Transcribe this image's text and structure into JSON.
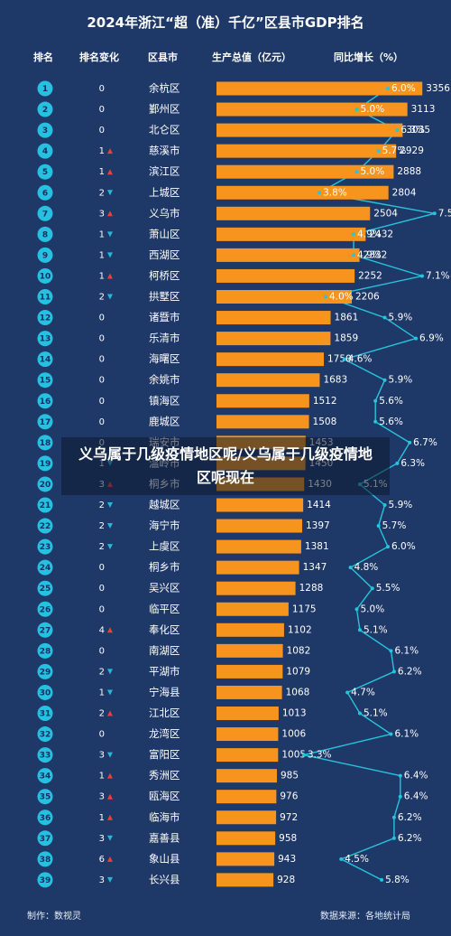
{
  "title": "2024年浙江“超（准）千亿”区县市GDP排名",
  "headers": {
    "rank": "排名",
    "change": "排名变化",
    "district": "区县市",
    "gdp": "生产总值（亿元）",
    "growth": "同比增长（%）"
  },
  "overlay": {
    "text": "义乌属于几级疫情地区呢/义乌属于几级疫情地区呢现在"
  },
  "footer": {
    "maker": "制作：数视灵",
    "source": "数据来源：各地统计局"
  },
  "colors": {
    "background": "#1e3868",
    "bar": "#f7941d",
    "rank_circle": "#26c0e0",
    "line": "#27c4dc",
    "up": "#e8413c",
    "down": "#29b6d8"
  },
  "chart_data": {
    "type": "table",
    "title": "2024年浙江“超（准）千亿”区县市GDP排名",
    "columns": [
      "排名",
      "排名变化",
      "区县市",
      "生产总值（亿元）",
      "同比增长（%）"
    ],
    "rows": [
      {
        "rank": 1,
        "change": 0,
        "direction": "",
        "name": "余杭区",
        "gdp": 3356,
        "growth": "6.0%"
      },
      {
        "rank": 2,
        "change": 0,
        "direction": "",
        "name": "鄞州区",
        "gdp": 3113,
        "growth": "5.0%"
      },
      {
        "rank": 3,
        "change": 0,
        "direction": "",
        "name": "北仑区",
        "gdp": 3035,
        "growth": "6.3%"
      },
      {
        "rank": 4,
        "change": 1,
        "direction": "up",
        "name": "慈溪市",
        "gdp": 2929,
        "growth": "5.7%"
      },
      {
        "rank": 5,
        "change": 1,
        "direction": "up",
        "name": "滨江区",
        "gdp": 2888,
        "growth": "5.0%"
      },
      {
        "rank": 6,
        "change": 2,
        "direction": "down",
        "name": "上城区",
        "gdp": 2804,
        "growth": "3.8%"
      },
      {
        "rank": 7,
        "change": 3,
        "direction": "up",
        "name": "义乌市",
        "gdp": 2504,
        "growth": "7.5%"
      },
      {
        "rank": 8,
        "change": 1,
        "direction": "down",
        "name": "萧山区",
        "gdp": 2432,
        "growth": "4.9%"
      },
      {
        "rank": 9,
        "change": 1,
        "direction": "down",
        "name": "西湖区",
        "gdp": 2332,
        "growth": "4.9%"
      },
      {
        "rank": 10,
        "change": 1,
        "direction": "up",
        "name": "柯桥区",
        "gdp": 2252,
        "growth": "7.1%"
      },
      {
        "rank": 11,
        "change": 2,
        "direction": "down",
        "name": "拱墅区",
        "gdp": 2206,
        "growth": "4.0%"
      },
      {
        "rank": 12,
        "change": 0,
        "direction": "",
        "name": "诸暨市",
        "gdp": 1861,
        "growth": "5.9%"
      },
      {
        "rank": 13,
        "change": 0,
        "direction": "",
        "name": "乐清市",
        "gdp": 1859,
        "growth": "6.9%"
      },
      {
        "rank": 14,
        "change": 0,
        "direction": "",
        "name": "海曙区",
        "gdp": 1750,
        "growth": "4.6%"
      },
      {
        "rank": 15,
        "change": 0,
        "direction": "",
        "name": "余姚市",
        "gdp": 1683,
        "growth": "5.9%"
      },
      {
        "rank": 16,
        "change": 0,
        "direction": "",
        "name": "镇海区",
        "gdp": 1512,
        "growth": "5.6%"
      },
      {
        "rank": 17,
        "change": 0,
        "direction": "",
        "name": "鹿城区",
        "gdp": 1508,
        "growth": "5.6%"
      },
      {
        "rank": 18,
        "change": 0,
        "direction": "",
        "name": "瑞安市",
        "gdp": 1453,
        "growth": "6.7%"
      },
      {
        "rank": 19,
        "change": 1,
        "direction": "down",
        "name": "温岭市",
        "gdp": 1450,
        "growth": "6.3%"
      },
      {
        "rank": 20,
        "change": 3,
        "direction": "up",
        "name": "桐乡市",
        "gdp": 1430,
        "growth": "5.1%"
      },
      {
        "rank": 21,
        "change": 2,
        "direction": "down",
        "name": "越城区",
        "gdp": 1414,
        "growth": "5.9%"
      },
      {
        "rank": 22,
        "change": 2,
        "direction": "down",
        "name": "海宁市",
        "gdp": 1397,
        "growth": "5.7%"
      },
      {
        "rank": 23,
        "change": 2,
        "direction": "down",
        "name": "上虞区",
        "gdp": 1381,
        "growth": "6.0%"
      },
      {
        "rank": 24,
        "change": 0,
        "direction": "",
        "name": "桐乡市",
        "gdp": 1347,
        "growth": "4.8%"
      },
      {
        "rank": 25,
        "change": 0,
        "direction": "",
        "name": "吴兴区",
        "gdp": 1288,
        "growth": "5.5%"
      },
      {
        "rank": 26,
        "change": 0,
        "direction": "",
        "name": "临平区",
        "gdp": 1175,
        "growth": "5.0%"
      },
      {
        "rank": 27,
        "change": 4,
        "direction": "up",
        "name": "奉化区",
        "gdp": 1102,
        "growth": "5.1%"
      },
      {
        "rank": 28,
        "change": 0,
        "direction": "",
        "name": "南湖区",
        "gdp": 1082,
        "growth": "6.1%"
      },
      {
        "rank": 29,
        "change": 2,
        "direction": "down",
        "name": "平湖市",
        "gdp": 1079,
        "growth": "6.2%"
      },
      {
        "rank": 30,
        "change": 1,
        "direction": "down",
        "name": "宁海县",
        "gdp": 1068,
        "growth": "4.7%"
      },
      {
        "rank": 31,
        "change": 2,
        "direction": "up",
        "name": "江北区",
        "gdp": 1013,
        "growth": "5.1%"
      },
      {
        "rank": 32,
        "change": 0,
        "direction": "",
        "name": "龙湾区",
        "gdp": 1006,
        "growth": "6.1%"
      },
      {
        "rank": 33,
        "change": 3,
        "direction": "down",
        "name": "富阳区",
        "gdp": 1005,
        "growth": "3.3%"
      },
      {
        "rank": 34,
        "change": 1,
        "direction": "up",
        "name": "秀洲区",
        "gdp": 985,
        "growth": "6.4%"
      },
      {
        "rank": 35,
        "change": 3,
        "direction": "up",
        "name": "瓯海区",
        "gdp": 976,
        "growth": "6.4%"
      },
      {
        "rank": 36,
        "change": 1,
        "direction": "up",
        "name": "临海市",
        "gdp": 972,
        "growth": "6.2%"
      },
      {
        "rank": 37,
        "change": 3,
        "direction": "down",
        "name": "嘉善县",
        "gdp": 958,
        "growth": "6.2%"
      },
      {
        "rank": 38,
        "change": 6,
        "direction": "up",
        "name": "象山县",
        "gdp": 943,
        "growth": "4.5%"
      },
      {
        "rank": 39,
        "change": 3,
        "direction": "down",
        "name": "长兴县",
        "gdp": 928,
        "growth": "5.8%"
      }
    ]
  }
}
